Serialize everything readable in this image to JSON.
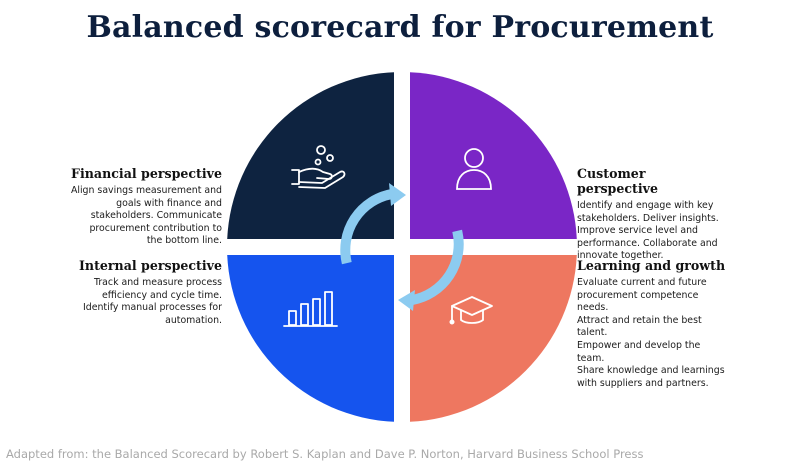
{
  "title": "Balanced scorecard for Procurement",
  "colors": {
    "title": "#0d1f3d",
    "financial": "#0e2340",
    "customer": "#7a26c6",
    "internal": "#1554ee",
    "learning": "#ee7760",
    "cycle_arrows": "#8ccbf0"
  },
  "quadrants": {
    "financial": {
      "heading": "Financial perspective",
      "lines": [
        "Align savings measurement and",
        "goals with finance and",
        "stakeholders. Communicate",
        "procurement contribution to",
        "the bottom line."
      ],
      "icon": "hand-coins-icon"
    },
    "customer": {
      "heading": "Customer perspective",
      "lines": [
        "Identify and engage with key",
        "stakeholders. Deliver insights.",
        "Improve service level and",
        "performance. Collaborate and",
        "innovate together."
      ],
      "icon": "person-icon"
    },
    "internal": {
      "heading": "Internal perspective",
      "lines": [
        "Track and measure process",
        "efficiency and cycle time.",
        "Identify manual processes for",
        "automation."
      ],
      "icon": "bar-chart-icon"
    },
    "learning": {
      "heading": "Learning and growth",
      "lines": [
        "Evaluate current and future",
        "procurement competence needs.",
        "Attract and retain the best talent.",
        "Empower and develop the team.",
        "Share knowledge and learnings",
        "with suppliers and partners."
      ],
      "icon": "graduation-cap-icon"
    }
  },
  "center_icon": "cycle-arrows-icon",
  "source": "Adapted from: the Balanced Scorecard by Robert S. Kaplan and Dave P. Norton, Harvard Business School Press"
}
